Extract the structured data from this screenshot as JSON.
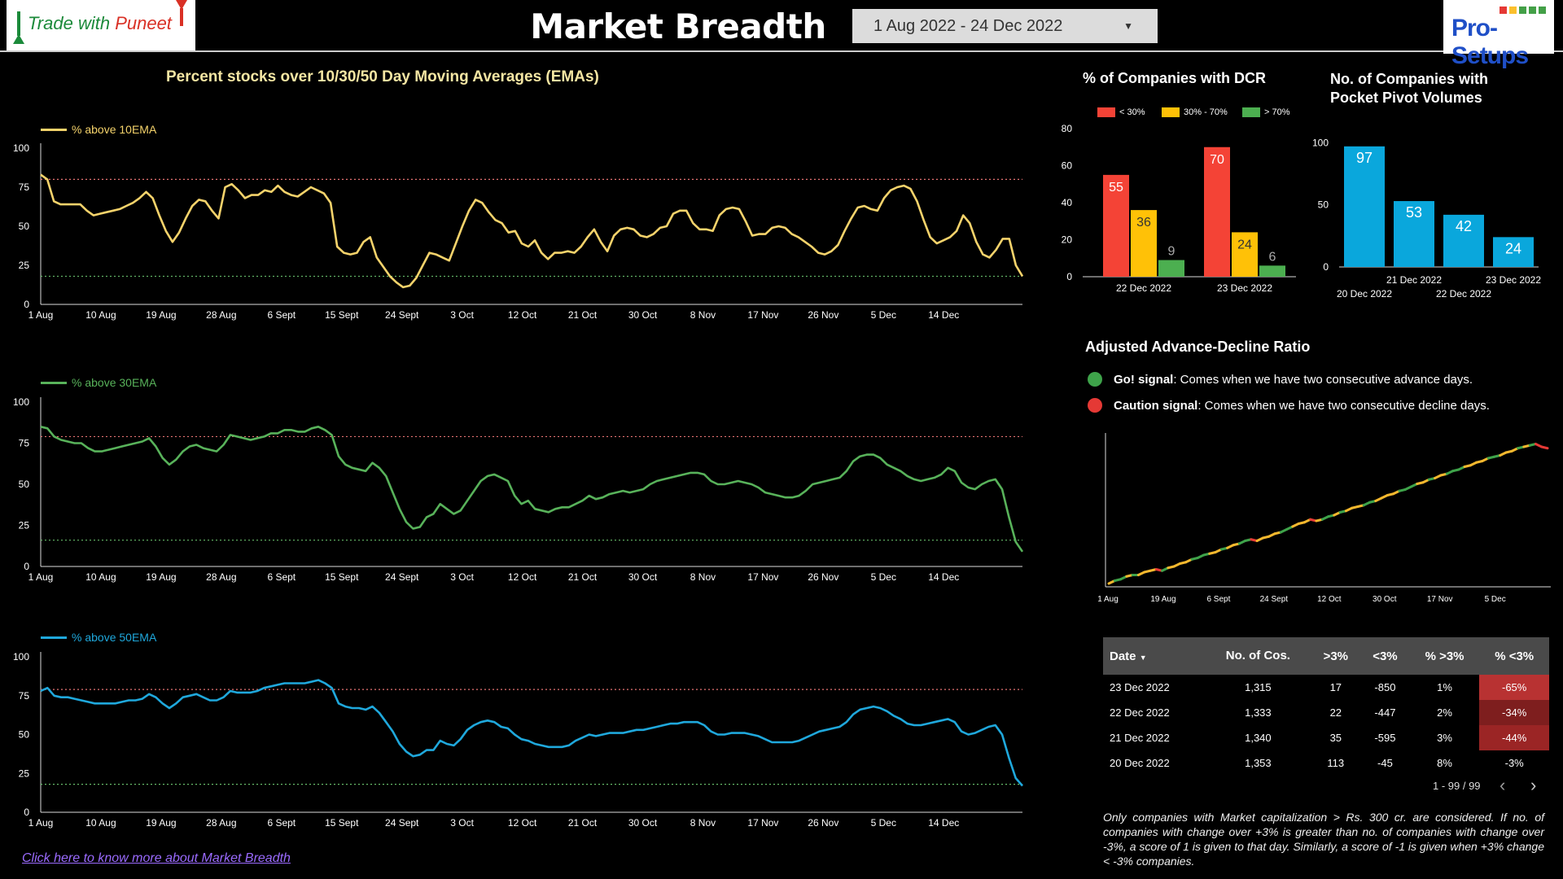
{
  "header": {
    "logo_left_a": "Trade with ",
    "logo_left_b": "Puneet",
    "title": "Market Breadth",
    "date_range": "1 Aug 2022 - 24 Dec 2022",
    "logo_right": "Pro-Setups"
  },
  "ema_section": {
    "title": "Percent stocks over 10/30/50 Day Moving Averages (EMAs)",
    "x_ticks": [
      "1 Aug",
      "10 Aug",
      "19 Aug",
      "28 Aug",
      "6 Sept",
      "15 Sept",
      "24 Sept",
      "3 Oct",
      "12 Oct",
      "21 Oct",
      "30 Oct",
      "8 Nov",
      "17 Nov",
      "26 Nov",
      "5 Dec",
      "14 Dec"
    ],
    "y_ticks": [
      "0",
      "25",
      "50",
      "75",
      "100"
    ],
    "charts": [
      {
        "legend": "% above 10EMA",
        "color": "#f5d36b"
      },
      {
        "legend": "% above 30EMA",
        "color": "#58b25a"
      },
      {
        "legend": "% above 50EMA",
        "color": "#1fa8dc"
      }
    ]
  },
  "dcr": {
    "title": "% of Companies with DCR",
    "legend": [
      "< 30%",
      "30% - 70%",
      "> 70%"
    ],
    "y_ticks": [
      "0",
      "20",
      "40",
      "60",
      "80"
    ]
  },
  "pivot": {
    "title_line1": "No. of Companies with",
    "title_line2": "Pocket Pivot Volumes",
    "y_ticks": [
      "0",
      "50",
      "100"
    ],
    "x_top": [
      "21 Dec 2022",
      "23 Dec 2022"
    ],
    "x_bottom": [
      "20 Dec 2022",
      "22 Dec 2022"
    ]
  },
  "adr": {
    "title": "Adjusted Advance-Decline Ratio",
    "go_label": "Go! signal",
    "go_text": ": Comes when we have two consecutive advance days.",
    "caution_label": "Caution signal",
    "caution_text": ": Comes when we have two consecutive decline days.",
    "x_ticks": [
      "1 Aug",
      "19 Aug",
      "6 Sept",
      "24 Sept",
      "12 Oct",
      "30 Oct",
      "17 Nov",
      "5 Dec"
    ]
  },
  "table": {
    "headers": {
      "date": "Date",
      "cos": "No. of Cos.",
      "gt3": ">3%",
      "lt3": "<3%",
      "pgt3": "% >3%",
      "plt3": "% <3%"
    },
    "rows": [
      {
        "date": "23 Dec 2022",
        "cos": "1,315",
        "gt3": "17",
        "lt3": "-850",
        "pgt3": "1%",
        "plt3": "-65%",
        "shade": "#b83232"
      },
      {
        "date": "22 Dec 2022",
        "cos": "1,333",
        "gt3": "22",
        "lt3": "-447",
        "pgt3": "2%",
        "plt3": "-34%",
        "shade": "#7e1e1e"
      },
      {
        "date": "21 Dec 2022",
        "cos": "1,340",
        "gt3": "35",
        "lt3": "-595",
        "pgt3": "3%",
        "plt3": "-44%",
        "shade": "#9b2525"
      },
      {
        "date": "20 Dec 2022",
        "cos": "1,353",
        "gt3": "113",
        "lt3": "-45",
        "pgt3": "8%",
        "plt3": "-3%",
        "shade": "#000000"
      }
    ],
    "pager": "1 - 99 / 99",
    "prev": "‹",
    "next": "›"
  },
  "footnote": "Only companies with Market capitalization > Rs. 300 cr. are considered. If no. of companies with change over +3% is greater than no. of companies with change over -3%, a score of 1 is given to that day. Similarly, a score of -1 is given when +3% change < -3% companies.",
  "link_text": "Click here to know more about Market Breadth",
  "chart_data": [
    {
      "type": "line",
      "title": "",
      "series": [
        {
          "name": "% above 10EMA",
          "values": [
            83,
            80,
            66,
            64,
            64,
            64,
            64,
            60,
            57,
            58,
            59,
            60,
            61,
            63,
            65,
            68,
            72,
            68,
            57,
            47,
            40,
            46,
            55,
            63,
            67,
            66,
            60,
            55,
            75,
            77,
            73,
            68,
            70,
            70,
            73,
            72,
            76,
            72,
            70,
            69,
            72,
            75,
            73,
            71,
            65,
            37,
            33,
            32,
            33,
            40,
            43,
            30,
            24,
            18,
            14,
            11,
            12,
            17,
            25,
            33,
            32,
            30,
            28,
            39,
            50,
            60,
            67,
            65,
            59,
            54,
            52,
            46,
            47,
            39,
            37,
            41,
            33,
            29,
            33,
            33,
            34,
            33,
            37,
            43,
            48,
            40,
            34,
            44,
            48,
            49,
            48,
            44,
            43,
            45,
            49,
            50,
            58,
            60,
            60,
            52,
            48,
            48,
            47,
            57,
            61,
            62,
            61,
            53,
            44,
            45,
            45,
            49,
            50,
            49,
            45,
            43,
            40,
            37,
            33,
            32,
            34,
            38,
            47,
            55,
            62,
            63,
            61,
            60,
            68,
            73,
            75,
            76,
            74,
            66,
            54,
            43,
            39,
            41,
            43,
            47,
            57,
            52,
            40,
            32,
            30,
            35,
            42,
            42,
            25,
            18
          ]
        }
      ],
      "x_ticks": [
        "1 Aug",
        "10 Aug",
        "19 Aug",
        "28 Aug",
        "6 Sept",
        "15 Sept",
        "24 Sept",
        "3 Oct",
        "12 Oct",
        "21 Oct",
        "30 Oct",
        "8 Nov",
        "17 Nov",
        "26 Nov",
        "5 Dec",
        "14 Dec"
      ],
      "ylim": [
        0,
        100
      ],
      "reference_lines": [
        80,
        18
      ]
    },
    {
      "type": "line",
      "title": "",
      "series": [
        {
          "name": "% above 30EMA",
          "values": [
            85,
            84,
            79,
            77,
            76,
            75,
            75,
            72,
            70,
            70,
            71,
            72,
            73,
            74,
            75,
            76,
            78,
            73,
            66,
            62,
            65,
            70,
            73,
            74,
            72,
            71,
            70,
            74,
            80,
            79,
            78,
            77,
            78,
            79,
            81,
            81,
            83,
            83,
            82,
            82,
            84,
            85,
            83,
            80,
            67,
            62,
            60,
            59,
            58,
            63,
            60,
            55,
            45,
            35,
            27,
            23,
            24,
            30,
            32,
            38,
            35,
            32,
            34,
            40,
            46,
            52,
            55,
            56,
            54,
            52,
            43,
            38,
            40,
            35,
            34,
            33,
            35,
            36,
            36,
            38,
            40,
            43,
            41,
            42,
            44,
            45,
            46,
            45,
            46,
            47,
            50,
            52,
            53,
            54,
            55,
            56,
            57,
            57,
            56,
            52,
            50,
            50,
            51,
            52,
            51,
            50,
            48,
            45,
            44,
            43,
            42,
            42,
            43,
            46,
            50,
            51,
            52,
            53,
            54,
            58,
            64,
            67,
            68,
            68,
            66,
            62,
            60,
            58,
            55,
            53,
            52,
            53,
            54,
            56,
            60,
            58,
            51,
            48,
            47,
            50,
            52,
            53,
            47,
            30,
            15,
            9
          ]
        }
      ],
      "x_ticks": [
        "1 Aug",
        "10 Aug",
        "19 Aug",
        "28 Aug",
        "6 Sept",
        "15 Sept",
        "24 Sept",
        "3 Oct",
        "12 Oct",
        "21 Oct",
        "30 Oct",
        "8 Nov",
        "17 Nov",
        "26 Nov",
        "5 Dec",
        "14 Dec"
      ],
      "ylim": [
        0,
        100
      ],
      "reference_lines": [
        79,
        16
      ]
    },
    {
      "type": "line",
      "title": "",
      "series": [
        {
          "name": "% above 50EMA",
          "values": [
            78,
            80,
            75,
            74,
            74,
            73,
            72,
            71,
            70,
            70,
            70,
            70,
            71,
            72,
            72,
            73,
            76,
            74,
            70,
            67,
            70,
            74,
            75,
            76,
            74,
            72,
            72,
            74,
            78,
            77,
            77,
            77,
            78,
            80,
            81,
            82,
            83,
            83,
            83,
            83,
            84,
            85,
            83,
            80,
            70,
            68,
            67,
            67,
            66,
            68,
            64,
            58,
            52,
            44,
            39,
            36,
            37,
            40,
            40,
            46,
            44,
            43,
            47,
            53,
            56,
            58,
            59,
            58,
            55,
            54,
            50,
            47,
            46,
            44,
            43,
            42,
            42,
            42,
            43,
            46,
            48,
            50,
            49,
            50,
            51,
            51,
            51,
            52,
            53,
            53,
            54,
            55,
            56,
            57,
            57,
            58,
            58,
            58,
            56,
            52,
            50,
            50,
            51,
            51,
            51,
            50,
            49,
            47,
            45,
            45,
            45,
            45,
            46,
            48,
            50,
            52,
            53,
            54,
            55,
            58,
            63,
            66,
            67,
            68,
            67,
            65,
            62,
            60,
            57,
            56,
            56,
            57,
            58,
            59,
            60,
            58,
            52,
            50,
            51,
            53,
            55,
            56,
            50,
            35,
            22,
            17
          ]
        }
      ],
      "x_ticks": [
        "1 Aug",
        "10 Aug",
        "19 Aug",
        "28 Aug",
        "6 Sept",
        "15 Sept",
        "24 Sept",
        "3 Oct",
        "12 Oct",
        "21 Oct",
        "30 Oct",
        "8 Nov",
        "17 Nov",
        "26 Nov",
        "5 Dec",
        "14 Dec"
      ],
      "ylim": [
        0,
        100
      ],
      "reference_lines": [
        79,
        18
      ]
    },
    {
      "type": "bar",
      "title": "% of Companies with DCR",
      "categories": [
        "22 Dec 2022",
        "23 Dec 2022"
      ],
      "series": [
        {
          "name": "< 30%",
          "values": [
            55,
            70
          ],
          "color": "#f44336"
        },
        {
          "name": "30% - 70%",
          "values": [
            36,
            24
          ],
          "color": "#ffc107"
        },
        {
          "name": "> 70%",
          "values": [
            9,
            6
          ],
          "color": "#4caf50"
        }
      ],
      "ylim": [
        0,
        80
      ]
    },
    {
      "type": "bar",
      "title": "No. of Companies with Pocket Pivot Volumes",
      "categories": [
        "20 Dec 2022",
        "21 Dec 2022",
        "22 Dec 2022",
        "23 Dec 2022"
      ],
      "values": [
        97,
        53,
        42,
        24
      ],
      "color": "#0aa7dc",
      "ylim": [
        0,
        110
      ]
    },
    {
      "type": "line",
      "title": "Adjusted Advance-Decline Ratio",
      "x_ticks": [
        "1 Aug",
        "19 Aug",
        "6 Sept",
        "24 Sept",
        "12 Oct",
        "30 Oct",
        "17 Nov",
        "5 Dec"
      ],
      "series": [
        {
          "name": "",
          "values": [
            0,
            2,
            3,
            5,
            6,
            6,
            8,
            9,
            10,
            9,
            11,
            12,
            14,
            15,
            17,
            18,
            20,
            21,
            22,
            24,
            25,
            27,
            28,
            30,
            31,
            30,
            32,
            33,
            35,
            36,
            38,
            40,
            42,
            43,
            45,
            44,
            45,
            47,
            48,
            50,
            51,
            53,
            54,
            55,
            57,
            58,
            60,
            62,
            63,
            65,
            66,
            68,
            70,
            71,
            73,
            74,
            76,
            77,
            79,
            80,
            82,
            83,
            85,
            86,
            88,
            89,
            90,
            92,
            93,
            95,
            96,
            97,
            98,
            96,
            95
          ]
        }
      ],
      "ylim": [
        0,
        100
      ]
    }
  ]
}
